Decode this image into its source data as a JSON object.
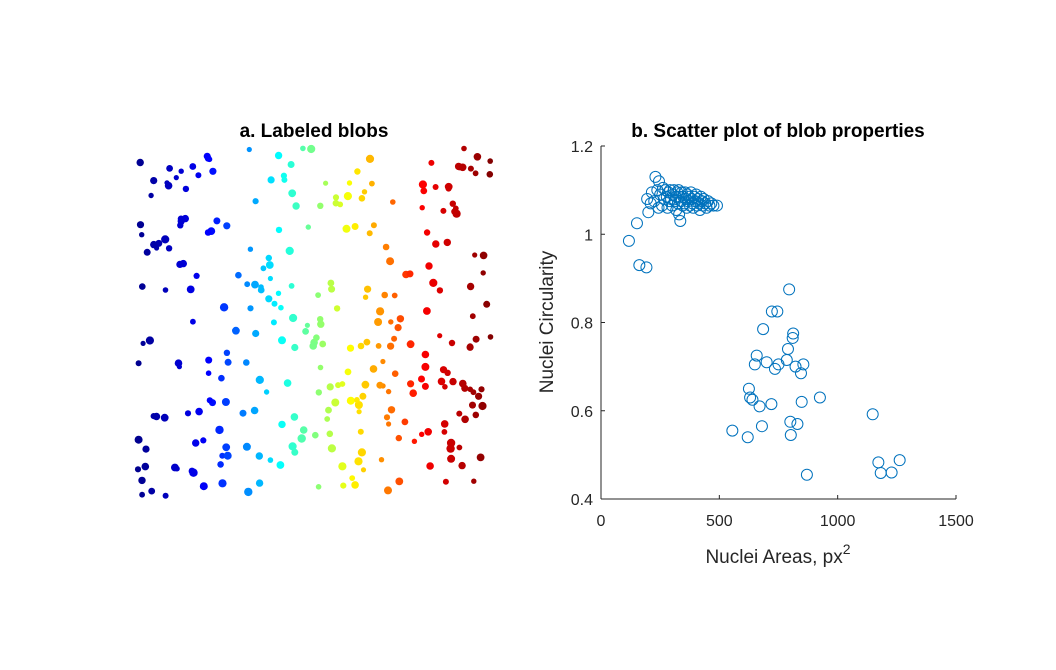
{
  "panel_a": {
    "title": "a. Labeled blobs",
    "colormap": [
      "#00008f",
      "#0000ff",
      "#00ffff",
      "#ffff00",
      "#ff0000",
      "#800000"
    ]
  },
  "panel_b": {
    "title": "b. Scatter plot of blob properties"
  },
  "chart_data": {
    "type": "scatter",
    "title": "b. Scatter plot of blob properties",
    "xlabel": "Nuclei Areas, px",
    "xlabel_superscript": "2",
    "ylabel": "Nuclei Circularity",
    "xlim": [
      0,
      1500
    ],
    "ylim": [
      0.4,
      1.2
    ],
    "x_ticks": [
      "0",
      "500",
      "1000",
      "1500"
    ],
    "y_ticks": [
      "0.4",
      "0.6",
      "0.8",
      "1",
      "1.2"
    ],
    "marker": "open-circle",
    "color": "#0072BD",
    "grid": false,
    "points": [
      [
        118,
        0.985
      ],
      [
        152,
        1.025
      ],
      [
        162,
        0.93
      ],
      [
        192,
        0.925
      ],
      [
        200,
        1.05
      ],
      [
        195,
        1.08
      ],
      [
        210,
        1.07
      ],
      [
        215,
        1.095
      ],
      [
        225,
        1.075
      ],
      [
        230,
        1.13
      ],
      [
        238,
        1.1
      ],
      [
        243,
        1.06
      ],
      [
        245,
        1.12
      ],
      [
        250,
        1.09
      ],
      [
        258,
        1.065
      ],
      [
        262,
        1.105
      ],
      [
        266,
        1.08
      ],
      [
        272,
        1.1
      ],
      [
        278,
        1.085
      ],
      [
        281,
        1.06
      ],
      [
        285,
        1.095
      ],
      [
        288,
        1.075
      ],
      [
        292,
        1.1
      ],
      [
        296,
        1.08
      ],
      [
        300,
        1.065
      ],
      [
        304,
        1.09
      ],
      [
        308,
        1.1
      ],
      [
        312,
        1.075
      ],
      [
        316,
        1.085
      ],
      [
        318,
        1.055
      ],
      [
        322,
        1.095
      ],
      [
        325,
        1.07
      ],
      [
        328,
        1.1
      ],
      [
        330,
        1.045
      ],
      [
        332,
        1.085
      ],
      [
        335,
        1.03
      ],
      [
        338,
        1.075
      ],
      [
        341,
        1.095
      ],
      [
        345,
        1.065
      ],
      [
        348,
        1.085
      ],
      [
        352,
        1.07
      ],
      [
        355,
        1.095
      ],
      [
        358,
        1.08
      ],
      [
        362,
        1.06
      ],
      [
        365,
        1.09
      ],
      [
        368,
        1.075
      ],
      [
        372,
        1.085
      ],
      [
        376,
        1.065
      ],
      [
        380,
        1.095
      ],
      [
        383,
        1.08
      ],
      [
        387,
        1.07
      ],
      [
        390,
        1.06
      ],
      [
        394,
        1.085
      ],
      [
        398,
        1.075
      ],
      [
        402,
        1.09
      ],
      [
        406,
        1.065
      ],
      [
        410,
        1.08
      ],
      [
        414,
        1.07
      ],
      [
        418,
        1.055
      ],
      [
        422,
        1.085
      ],
      [
        426,
        1.075
      ],
      [
        430,
        1.065
      ],
      [
        434,
        1.08
      ],
      [
        440,
        1.07
      ],
      [
        446,
        1.06
      ],
      [
        452,
        1.075
      ],
      [
        458,
        1.065
      ],
      [
        466,
        1.07
      ],
      [
        475,
        1.065
      ],
      [
        490,
        1.065
      ],
      [
        555,
        0.555
      ],
      [
        620,
        0.54
      ],
      [
        625,
        0.65
      ],
      [
        630,
        0.63
      ],
      [
        640,
        0.625
      ],
      [
        650,
        0.705
      ],
      [
        658,
        0.725
      ],
      [
        670,
        0.61
      ],
      [
        680,
        0.565
      ],
      [
        685,
        0.785
      ],
      [
        700,
        0.71
      ],
      [
        720,
        0.615
      ],
      [
        722,
        0.825
      ],
      [
        735,
        0.695
      ],
      [
        745,
        0.825
      ],
      [
        750,
        0.705
      ],
      [
        785,
        0.715
      ],
      [
        790,
        0.74
      ],
      [
        795,
        0.875
      ],
      [
        800,
        0.575
      ],
      [
        802,
        0.545
      ],
      [
        810,
        0.765
      ],
      [
        812,
        0.775
      ],
      [
        822,
        0.7
      ],
      [
        830,
        0.57
      ],
      [
        845,
        0.685
      ],
      [
        848,
        0.62
      ],
      [
        855,
        0.705
      ],
      [
        870,
        0.455
      ],
      [
        925,
        0.63
      ],
      [
        1148,
        0.592
      ],
      [
        1172,
        0.483
      ],
      [
        1182,
        0.459
      ],
      [
        1228,
        0.46
      ],
      [
        1262,
        0.488
      ]
    ]
  }
}
